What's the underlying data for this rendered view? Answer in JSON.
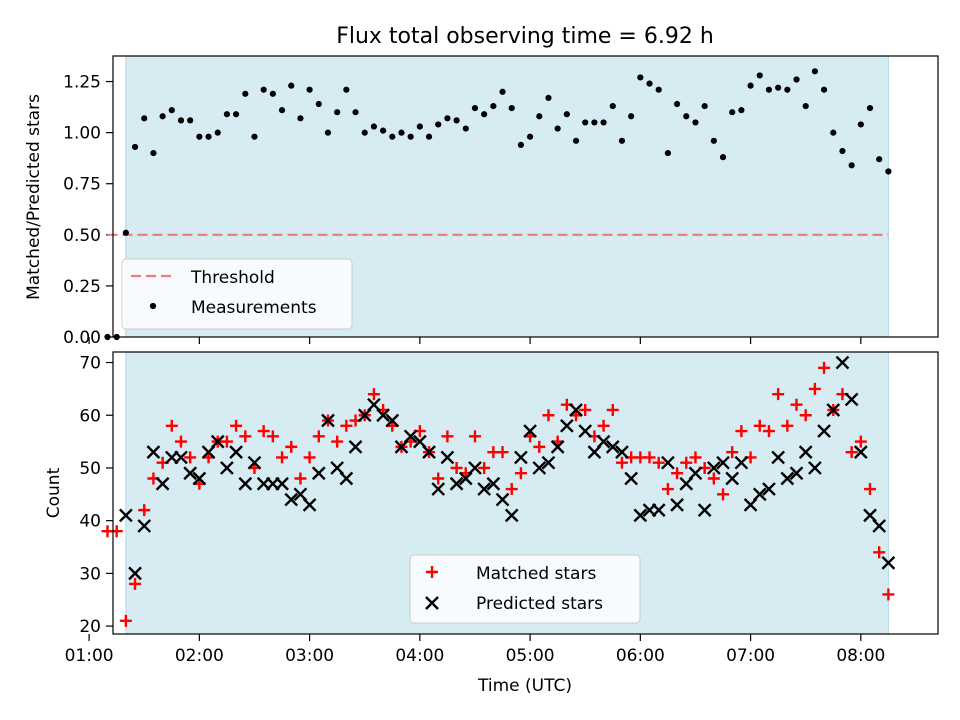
{
  "chart_data": [
    {
      "type": "scatter",
      "title": "Flux total observing time = 6.92 h",
      "xlabel": "",
      "ylabel": "Matched/Predicted stars",
      "xlim": [
        "01:13",
        "08:42"
      ],
      "ylim": [
        0,
        1.375
      ],
      "yticks": [
        0.0,
        0.25,
        0.5,
        0.75,
        1.0,
        1.25
      ],
      "ytick_labels": [
        "0.00",
        "0.25",
        "0.50",
        "0.75",
        "1.00",
        "1.25"
      ],
      "shaded_span": [
        "01:20",
        "08:15"
      ],
      "threshold": {
        "name": "Threshold",
        "value": 0.5,
        "x": [
          "01:10",
          "08:15"
        ],
        "color": "#f27979"
      },
      "legend_loc": "lower left",
      "series": [
        {
          "name": "Measurements",
          "color": "#000000",
          "points": [
            [
              "01:10",
              0.0
            ],
            [
              "01:15",
              0.0
            ],
            [
              "01:20",
              0.51
            ],
            [
              "01:25",
              0.93
            ],
            [
              "01:30",
              1.07
            ],
            [
              "01:35",
              0.9
            ],
            [
              "01:40",
              1.08
            ],
            [
              "01:45",
              1.11
            ],
            [
              "01:50",
              1.06
            ],
            [
              "01:55",
              1.06
            ],
            [
              "02:00",
              0.98
            ],
            [
              "02:05",
              0.98
            ],
            [
              "02:10",
              1.0
            ],
            [
              "02:15",
              1.09
            ],
            [
              "02:20",
              1.09
            ],
            [
              "02:25",
              1.19
            ],
            [
              "02:30",
              0.98
            ],
            [
              "02:35",
              1.21
            ],
            [
              "02:40",
              1.19
            ],
            [
              "02:45",
              1.11
            ],
            [
              "02:50",
              1.23
            ],
            [
              "02:55",
              1.07
            ],
            [
              "03:00",
              1.21
            ],
            [
              "03:05",
              1.14
            ],
            [
              "03:10",
              1.0
            ],
            [
              "03:15",
              1.1
            ],
            [
              "03:20",
              1.21
            ],
            [
              "03:25",
              1.1
            ],
            [
              "03:30",
              1.0
            ],
            [
              "03:35",
              1.03
            ],
            [
              "03:40",
              1.01
            ],
            [
              "03:45",
              0.98
            ],
            [
              "03:50",
              1.0
            ],
            [
              "03:55",
              0.98
            ],
            [
              "04:00",
              1.03
            ],
            [
              "04:05",
              0.98
            ],
            [
              "04:10",
              1.04
            ],
            [
              "04:15",
              1.07
            ],
            [
              "04:20",
              1.06
            ],
            [
              "04:25",
              1.02
            ],
            [
              "04:30",
              1.12
            ],
            [
              "04:35",
              1.09
            ],
            [
              "04:40",
              1.13
            ],
            [
              "04:45",
              1.2
            ],
            [
              "04:50",
              1.12
            ],
            [
              "04:55",
              0.94
            ],
            [
              "05:00",
              0.98
            ],
            [
              "05:05",
              1.08
            ],
            [
              "05:10",
              1.17
            ],
            [
              "05:15",
              1.02
            ],
            [
              "05:20",
              1.09
            ],
            [
              "05:25",
              0.96
            ],
            [
              "05:30",
              1.05
            ],
            [
              "05:35",
              1.05
            ],
            [
              "05:40",
              1.05
            ],
            [
              "05:45",
              1.13
            ],
            [
              "05:50",
              0.96
            ],
            [
              "05:55",
              1.08
            ],
            [
              "06:00",
              1.27
            ],
            [
              "06:05",
              1.24
            ],
            [
              "06:10",
              1.21
            ],
            [
              "06:15",
              0.9
            ],
            [
              "06:20",
              1.14
            ],
            [
              "06:25",
              1.08
            ],
            [
              "06:30",
              1.05
            ],
            [
              "06:35",
              1.13
            ],
            [
              "06:40",
              0.96
            ],
            [
              "06:45",
              0.88
            ],
            [
              "06:50",
              1.1
            ],
            [
              "06:55",
              1.11
            ],
            [
              "07:00",
              1.23
            ],
            [
              "07:05",
              1.28
            ],
            [
              "07:10",
              1.21
            ],
            [
              "07:15",
              1.22
            ],
            [
              "07:20",
              1.21
            ],
            [
              "07:25",
              1.26
            ],
            [
              "07:30",
              1.13
            ],
            [
              "07:35",
              1.3
            ],
            [
              "07:40",
              1.21
            ],
            [
              "07:45",
              1.0
            ],
            [
              "07:50",
              0.91
            ],
            [
              "07:55",
              0.84
            ],
            [
              "08:00",
              1.04
            ],
            [
              "08:05",
              1.12
            ],
            [
              "08:10",
              0.87
            ],
            [
              "08:15",
              0.81
            ]
          ]
        }
      ]
    },
    {
      "type": "scatter",
      "title": "",
      "xlabel": "Time (UTC)",
      "ylabel": "Count",
      "xlim": [
        "01:13",
        "08:42"
      ],
      "ylim": [
        18.5,
        72
      ],
      "yticks": [
        20,
        30,
        40,
        50,
        60,
        70
      ],
      "ytick_labels": [
        "20",
        "30",
        "40",
        "50",
        "60",
        "70"
      ],
      "xtick_labels": [
        "01:00",
        "02:00",
        "03:00",
        "04:00",
        "05:00",
        "06:00",
        "07:00",
        "08:00"
      ],
      "shaded_span": [
        "01:20",
        "08:15"
      ],
      "legend_loc": "lower center",
      "series": [
        {
          "name": "Matched stars",
          "marker": "+",
          "color": "#ff0000",
          "points": [
            [
              "01:10",
              38
            ],
            [
              "01:15",
              38
            ],
            [
              "01:20",
              21
            ],
            [
              "01:25",
              28
            ],
            [
              "01:30",
              42
            ],
            [
              "01:35",
              48
            ],
            [
              "01:40",
              51
            ],
            [
              "01:45",
              58
            ],
            [
              "01:50",
              55
            ],
            [
              "01:55",
              52
            ],
            [
              "02:00",
              47
            ],
            [
              "02:05",
              52
            ],
            [
              "02:10",
              55
            ],
            [
              "02:15",
              55
            ],
            [
              "02:20",
              58
            ],
            [
              "02:25",
              56
            ],
            [
              "02:30",
              50
            ],
            [
              "02:35",
              57
            ],
            [
              "02:40",
              56
            ],
            [
              "02:45",
              52
            ],
            [
              "02:50",
              54
            ],
            [
              "02:55",
              48
            ],
            [
              "03:00",
              52
            ],
            [
              "03:05",
              56
            ],
            [
              "03:10",
              59
            ],
            [
              "03:15",
              55
            ],
            [
              "03:20",
              58
            ],
            [
              "03:25",
              59
            ],
            [
              "03:30",
              60
            ],
            [
              "03:35",
              64
            ],
            [
              "03:40",
              61
            ],
            [
              "03:45",
              58
            ],
            [
              "03:50",
              54
            ],
            [
              "03:55",
              55
            ],
            [
              "04:00",
              57
            ],
            [
              "04:05",
              53
            ],
            [
              "04:10",
              48
            ],
            [
              "04:15",
              56
            ],
            [
              "04:20",
              50
            ],
            [
              "04:25",
              49
            ],
            [
              "04:30",
              56
            ],
            [
              "04:35",
              50
            ],
            [
              "04:40",
              53
            ],
            [
              "04:45",
              53
            ],
            [
              "04:50",
              46
            ],
            [
              "04:55",
              49
            ],
            [
              "05:00",
              56
            ],
            [
              "05:05",
              54
            ],
            [
              "05:10",
              60
            ],
            [
              "05:15",
              55
            ],
            [
              "05:20",
              62
            ],
            [
              "05:25",
              60
            ],
            [
              "05:30",
              61
            ],
            [
              "05:35",
              56
            ],
            [
              "05:40",
              58
            ],
            [
              "05:45",
              61
            ],
            [
              "05:50",
              51
            ],
            [
              "05:55",
              52
            ],
            [
              "06:00",
              52
            ],
            [
              "06:05",
              52
            ],
            [
              "06:10",
              51
            ],
            [
              "06:15",
              46
            ],
            [
              "06:20",
              49
            ],
            [
              "06:25",
              51
            ],
            [
              "06:30",
              52
            ],
            [
              "06:35",
              50
            ],
            [
              "06:40",
              48
            ],
            [
              "06:45",
              45
            ],
            [
              "06:50",
              53
            ],
            [
              "06:55",
              57
            ],
            [
              "07:00",
              52
            ],
            [
              "07:05",
              58
            ],
            [
              "07:10",
              57
            ],
            [
              "07:15",
              64
            ],
            [
              "07:20",
              58
            ],
            [
              "07:25",
              62
            ],
            [
              "07:30",
              60
            ],
            [
              "07:35",
              65
            ],
            [
              "07:40",
              69
            ],
            [
              "07:45",
              61
            ],
            [
              "07:50",
              64
            ],
            [
              "07:55",
              53
            ],
            [
              "08:00",
              55
            ],
            [
              "08:05",
              46
            ],
            [
              "08:10",
              34
            ],
            [
              "08:15",
              26
            ]
          ]
        },
        {
          "name": "Predicted stars",
          "marker": "x",
          "color": "#000000",
          "points": [
            [
              "01:20",
              41
            ],
            [
              "01:25",
              30
            ],
            [
              "01:30",
              39
            ],
            [
              "01:35",
              53
            ],
            [
              "01:40",
              47
            ],
            [
              "01:45",
              52
            ],
            [
              "01:50",
              52
            ],
            [
              "01:55",
              49
            ],
            [
              "02:00",
              48
            ],
            [
              "02:05",
              53
            ],
            [
              "02:10",
              55
            ],
            [
              "02:15",
              50
            ],
            [
              "02:20",
              53
            ],
            [
              "02:25",
              47
            ],
            [
              "02:30",
              51
            ],
            [
              "02:35",
              47
            ],
            [
              "02:40",
              47
            ],
            [
              "02:45",
              47
            ],
            [
              "02:50",
              44
            ],
            [
              "02:55",
              45
            ],
            [
              "03:00",
              43
            ],
            [
              "03:05",
              49
            ],
            [
              "03:10",
              59
            ],
            [
              "03:15",
              50
            ],
            [
              "03:20",
              48
            ],
            [
              "03:25",
              54
            ],
            [
              "03:30",
              60
            ],
            [
              "03:35",
              62
            ],
            [
              "03:40",
              60
            ],
            [
              "03:45",
              59
            ],
            [
              "03:50",
              54
            ],
            [
              "03:55",
              56
            ],
            [
              "04:00",
              55
            ],
            [
              "04:05",
              53
            ],
            [
              "04:10",
              46
            ],
            [
              "04:15",
              52
            ],
            [
              "04:20",
              47
            ],
            [
              "04:25",
              48
            ],
            [
              "04:30",
              50
            ],
            [
              "04:35",
              46
            ],
            [
              "04:40",
              47
            ],
            [
              "04:45",
              44
            ],
            [
              "04:50",
              41
            ],
            [
              "04:55",
              52
            ],
            [
              "05:00",
              57
            ],
            [
              "05:05",
              50
            ],
            [
              "05:10",
              51
            ],
            [
              "05:15",
              54
            ],
            [
              "05:20",
              58
            ],
            [
              "05:25",
              61
            ],
            [
              "05:30",
              57
            ],
            [
              "05:35",
              53
            ],
            [
              "05:40",
              55
            ],
            [
              "05:45",
              54
            ],
            [
              "05:50",
              53
            ],
            [
              "05:55",
              48
            ],
            [
              "06:00",
              41
            ],
            [
              "06:05",
              42
            ],
            [
              "06:10",
              42
            ],
            [
              "06:15",
              51
            ],
            [
              "06:20",
              43
            ],
            [
              "06:25",
              47
            ],
            [
              "06:30",
              49
            ],
            [
              "06:35",
              42
            ],
            [
              "06:40",
              50
            ],
            [
              "06:45",
              51
            ],
            [
              "06:50",
              48
            ],
            [
              "06:55",
              51
            ],
            [
              "07:00",
              43
            ],
            [
              "07:05",
              45
            ],
            [
              "07:10",
              46
            ],
            [
              "07:15",
              52
            ],
            [
              "07:20",
              48
            ],
            [
              "07:25",
              49
            ],
            [
              "07:30",
              53
            ],
            [
              "07:35",
              50
            ],
            [
              "07:40",
              57
            ],
            [
              "07:45",
              61
            ],
            [
              "07:50",
              70
            ],
            [
              "07:55",
              63
            ],
            [
              "08:00",
              53
            ],
            [
              "08:05",
              41
            ],
            [
              "08:10",
              39
            ],
            [
              "08:15",
              32
            ]
          ]
        }
      ]
    }
  ]
}
